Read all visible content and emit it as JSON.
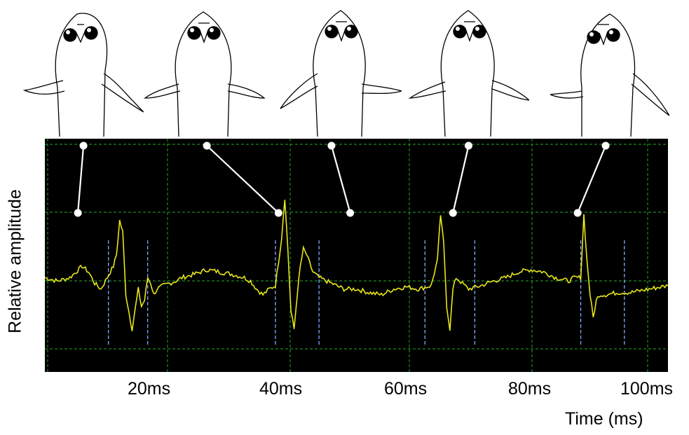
{
  "chart_data": {
    "type": "line",
    "title": "",
    "xlabel": "Time (ms)",
    "ylabel": "Relative amplitude",
    "x_ticks": [
      "20ms",
      "40ms",
      "60ms",
      "80ms",
      "100ms"
    ],
    "x_tick_values": [
      20,
      40,
      60,
      80,
      100
    ],
    "xlim": [
      0,
      100
    ],
    "ylim": [
      -1,
      1
    ],
    "grid": true,
    "colors": {
      "background": "#000000",
      "grid": "#1f8a1f",
      "trace": "#e6e619",
      "markers": "#7fa8ff",
      "pectoral_lines": "#ffffff"
    },
    "series": [
      {
        "x": [
          0,
          2,
          4,
          5,
          6,
          7,
          8,
          9,
          10,
          11,
          11.5,
          12,
          12.5,
          13,
          14,
          15,
          15.5,
          16,
          16.5,
          17,
          17.5,
          18,
          19,
          20,
          21,
          22,
          24,
          26,
          28,
          30,
          32,
          33,
          34,
          35,
          36,
          37,
          38,
          38.5,
          39,
          39.5,
          40,
          40.5,
          41,
          41.5,
          42,
          43,
          44,
          46,
          48,
          50,
          52,
          54,
          56,
          58,
          60,
          62,
          63,
          63.5,
          64,
          64.5,
          65,
          65.5,
          66,
          67,
          68,
          70,
          72,
          74,
          76,
          78,
          80,
          82,
          84,
          85,
          86,
          86.5,
          87,
          87.5,
          88,
          88.5,
          89,
          90,
          92,
          94,
          96,
          98,
          100
        ],
        "y": [
          0.05,
          0.02,
          0.05,
          0.1,
          0.15,
          0.1,
          0.0,
          -0.05,
          0.05,
          0.15,
          0.25,
          0.55,
          0.45,
          -0.1,
          -0.4,
          -0.05,
          -0.2,
          -0.15,
          0.05,
          0.0,
          -0.1,
          -0.05,
          -0.02,
          0.0,
          0.02,
          0.05,
          0.08,
          0.12,
          0.1,
          0.08,
          0.05,
          0.02,
          -0.05,
          -0.1,
          -0.05,
          -0.02,
          0.4,
          0.75,
          0.3,
          -0.25,
          -0.4,
          -0.1,
          0.15,
          0.3,
          0.25,
          0.1,
          0.05,
          0.0,
          -0.05,
          -0.05,
          -0.08,
          -0.1,
          -0.05,
          -0.03,
          -0.05,
          -0.02,
          0.2,
          0.6,
          0.35,
          -0.2,
          -0.4,
          -0.05,
          0.05,
          0.0,
          -0.05,
          -0.02,
          0.02,
          0.05,
          0.1,
          0.12,
          0.1,
          0.05,
          0.02,
          0.05,
          0.05,
          0.6,
          0.2,
          -0.1,
          -0.3,
          -0.15,
          -0.1,
          -0.1,
          -0.08,
          -0.08,
          -0.06,
          -0.04,
          -0.02
        ]
      }
    ],
    "marker_lines_x": [
      10.2,
      16.5,
      37.0,
      44.0,
      61.0,
      69.0,
      86.0,
      93.0
    ],
    "pectoral_fin_segments": [
      {
        "top": [
          6.2,
          0.95
        ],
        "bottom": [
          5.3,
          0.47
        ]
      },
      {
        "top": [
          26.0,
          0.95
        ],
        "bottom": [
          37.5,
          0.47
        ]
      },
      {
        "top": [
          46.0,
          0.95
        ],
        "bottom": [
          49.0,
          0.47
        ]
      },
      {
        "top": [
          68.0,
          0.95
        ],
        "bottom": [
          65.5,
          0.47
        ]
      },
      {
        "top": [
          90.0,
          0.95
        ],
        "bottom": [
          85.5,
          0.47
        ]
      }
    ]
  },
  "fish_frames": [
    "frame-1",
    "frame-2",
    "frame-3",
    "frame-4",
    "frame-5"
  ]
}
